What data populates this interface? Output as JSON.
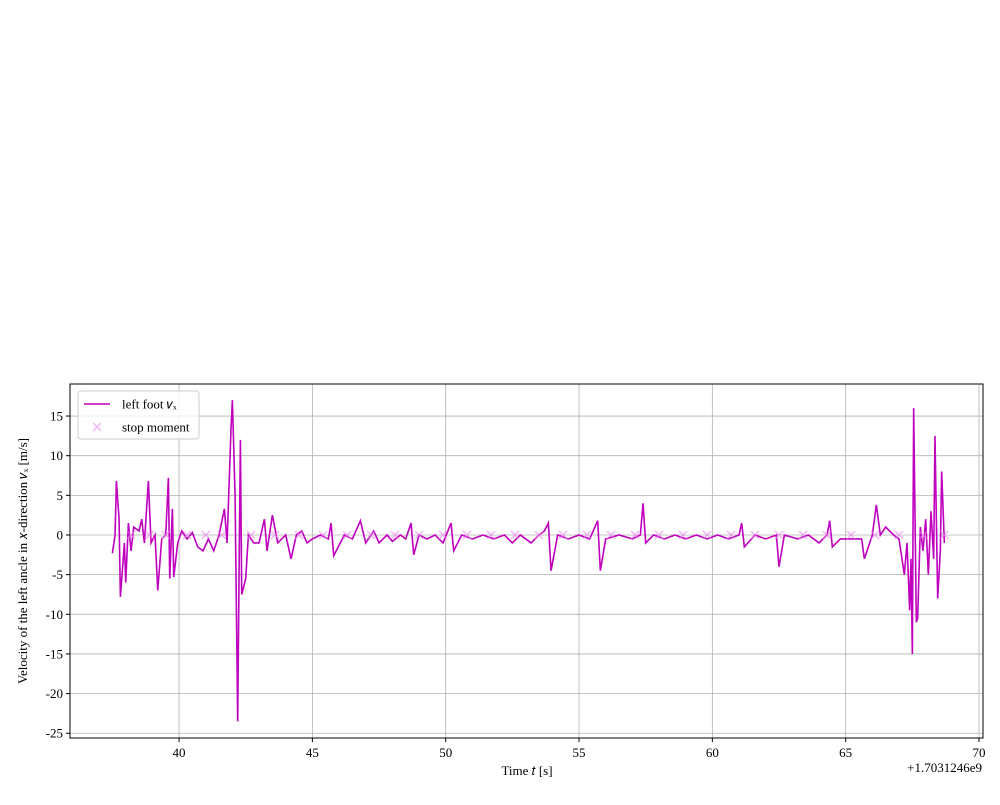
{
  "chart_data": {
    "type": "line",
    "xlabel": "Time 𝑡 [s]",
    "ylabel": "Velocity of the left ancle in 𝑥-direction 𝑣ₓ [m/s]",
    "x_offset_label": "+1.7031246e9",
    "xlim": [
      35.91,
      70.15
    ],
    "ylim": [
      -25.6,
      19.04
    ],
    "xticks": [
      40,
      45,
      50,
      55,
      60,
      65,
      70
    ],
    "yticks": [
      -25,
      -20,
      -15,
      -10,
      -5,
      0,
      5,
      10,
      15
    ],
    "grid": true,
    "legend": "upper left",
    "series": [
      {
        "name": "left foot 𝑣ₓ",
        "color": "#bf00bf",
        "kind": "line",
        "x": [
          37.5,
          37.6,
          37.65,
          37.75,
          37.8,
          37.95,
          38.0,
          38.1,
          38.2,
          38.3,
          38.5,
          38.6,
          38.7,
          38.85,
          38.95,
          39.1,
          39.2,
          39.35,
          39.5,
          39.6,
          39.65,
          39.75,
          39.8,
          39.95,
          40.1,
          40.3,
          40.5,
          40.7,
          40.9,
          41.1,
          41.3,
          41.5,
          41.7,
          41.8,
          41.95,
          42.0,
          42.1,
          42.2,
          42.25,
          42.3,
          42.35,
          42.5,
          42.6,
          42.8,
          43.0,
          43.2,
          43.3,
          43.5,
          43.7,
          44.0,
          44.2,
          44.4,
          44.6,
          44.8,
          45.0,
          45.3,
          45.6,
          45.7,
          45.8,
          46.2,
          46.5,
          46.8,
          47.0,
          47.3,
          47.5,
          47.8,
          48.0,
          48.3,
          48.5,
          48.7,
          48.8,
          49.0,
          49.3,
          49.6,
          49.9,
          50.2,
          50.3,
          50.6,
          51.0,
          51.4,
          51.8,
          52.2,
          52.5,
          52.8,
          53.2,
          53.5,
          53.7,
          53.85,
          53.95,
          54.2,
          54.6,
          55.0,
          55.4,
          55.7,
          55.8,
          56.0,
          56.5,
          57.0,
          57.3,
          57.4,
          57.5,
          57.8,
          58.2,
          58.6,
          59.0,
          59.4,
          59.8,
          60.2,
          60.6,
          61.0,
          61.1,
          61.2,
          61.6,
          62.0,
          62.4,
          62.5,
          62.7,
          63.2,
          63.6,
          64.0,
          64.3,
          64.4,
          64.5,
          64.8,
          65.2,
          65.6,
          65.7,
          66.0,
          66.15,
          66.3,
          66.5,
          66.8,
          67.0,
          67.2,
          67.3,
          67.4,
          67.45,
          67.5,
          67.55,
          67.65,
          67.7,
          67.8,
          67.9,
          68.0,
          68.1,
          68.2,
          68.3,
          68.35,
          68.45,
          68.55,
          68.6,
          68.7
        ],
        "values": [
          -2.3,
          0,
          6.8,
          2,
          -7.8,
          -1,
          -6,
          1.5,
          -2,
          1,
          0.5,
          2,
          -1,
          6.8,
          -1,
          0,
          -7,
          -0.5,
          0,
          7.2,
          -5.5,
          3.3,
          -5.3,
          -1,
          0.5,
          -0.5,
          0.3,
          -1.5,
          -2,
          -0.5,
          -2,
          0,
          3.3,
          -1,
          13.5,
          17,
          5,
          -23.5,
          -5,
          12,
          -7.5,
          -5.5,
          0,
          -1,
          -1,
          2,
          -2,
          2.5,
          -1,
          0,
          -3,
          0,
          0.5,
          -1,
          -0.5,
          0,
          -0.5,
          1.5,
          -2.6,
          0,
          -0.5,
          1.8,
          -1,
          0.5,
          -1,
          0,
          -0.8,
          0,
          -0.5,
          1.5,
          -2.5,
          0,
          -0.5,
          0,
          -1,
          1.5,
          -2,
          0,
          -0.5,
          0,
          -0.5,
          0,
          -1,
          0,
          -1,
          0,
          0.5,
          1.5,
          -4.5,
          0,
          -0.5,
          0,
          -0.5,
          1.8,
          -4.5,
          -0.5,
          0,
          -0.5,
          0,
          4,
          -1,
          0,
          -0.5,
          0,
          -0.5,
          0,
          -0.5,
          0,
          -0.5,
          0,
          1.5,
          -1.5,
          0,
          -0.5,
          0,
          -4,
          0,
          -0.5,
          0,
          -1,
          0,
          1.8,
          -1.5,
          -0.5,
          -0.5,
          -0.5,
          -3,
          0,
          3.8,
          0,
          1,
          0,
          -0.5,
          -5,
          -1,
          -9.5,
          -3,
          -15,
          16,
          -11,
          -10.5,
          1,
          -2,
          2,
          -5,
          3,
          -3,
          12.5,
          -8,
          -2,
          8,
          -1
        ]
      },
      {
        "name": "stop moment",
        "color": "#ee82ee",
        "kind": "scatter",
        "x": [
          38.2,
          38.9,
          39.5,
          40.3,
          41.0,
          41.6,
          42.7,
          43.6,
          44.5,
          45.4,
          46.3,
          47.2,
          48.1,
          49.0,
          49.9,
          50.8,
          51.7,
          52.6,
          53.5,
          54.4,
          55.3,
          56.2,
          57.1,
          58.0,
          58.9,
          59.8,
          60.7,
          61.6,
          62.5,
          63.4,
          64.3,
          65.2,
          66.1,
          67.0,
          67.9,
          68.7
        ],
        "values": [
          0,
          0,
          0,
          0,
          0,
          0,
          0,
          0,
          0,
          0,
          0,
          0,
          0,
          0,
          0,
          0,
          0,
          0,
          0,
          0,
          0,
          0,
          0,
          0,
          0,
          0,
          0,
          0,
          0,
          0,
          0,
          0,
          0,
          0,
          0,
          0
        ]
      }
    ]
  }
}
